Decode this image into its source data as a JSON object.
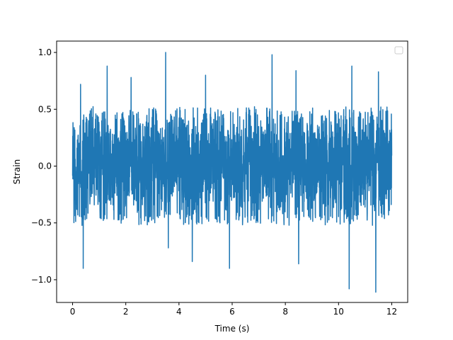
{
  "chart_data": {
    "type": "line",
    "title": "",
    "xlabel": "Time (s)",
    "ylabel": "Strain",
    "xlim": [
      -0.6,
      12.6
    ],
    "ylim": [
      -1.2,
      1.1
    ],
    "x_ticks": [
      0,
      2,
      4,
      6,
      8,
      10,
      12
    ],
    "x_tick_labels": [
      "0",
      "2",
      "4",
      "6",
      "8",
      "10",
      "12"
    ],
    "y_ticks": [
      -1.0,
      -0.5,
      0.0,
      0.5,
      1.0
    ],
    "y_tick_labels": [
      "−1.0",
      "−0.5",
      "0.0",
      "0.5",
      "1.0"
    ],
    "grid": false,
    "legend": {
      "placement": "upper-right",
      "entries": []
    },
    "series": [
      {
        "color": "#1f77b4",
        "x_start": 0.0,
        "x_end": 12.0,
        "typical_range": [
          -0.5,
          0.5
        ],
        "peaks": [
          {
            "x": 0.3,
            "y": 0.72
          },
          {
            "x": 0.4,
            "y": -0.9
          },
          {
            "x": 1.3,
            "y": 0.88
          },
          {
            "x": 2.2,
            "y": 0.78
          },
          {
            "x": 3.5,
            "y": 1.0
          },
          {
            "x": 3.6,
            "y": -0.72
          },
          {
            "x": 4.5,
            "y": -0.84
          },
          {
            "x": 5.0,
            "y": 0.8
          },
          {
            "x": 5.9,
            "y": -0.9
          },
          {
            "x": 7.5,
            "y": 0.98
          },
          {
            "x": 8.4,
            "y": 0.84
          },
          {
            "x": 8.5,
            "y": -0.86
          },
          {
            "x": 10.4,
            "y": -1.08
          },
          {
            "x": 10.5,
            "y": 0.88
          },
          {
            "x": 11.4,
            "y": -1.11
          },
          {
            "x": 11.5,
            "y": 0.83
          }
        ]
      }
    ]
  }
}
